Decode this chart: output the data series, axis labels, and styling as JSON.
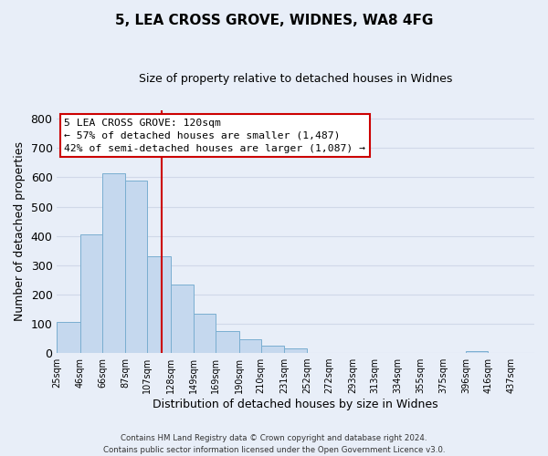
{
  "title": "5, LEA CROSS GROVE, WIDNES, WA8 4FG",
  "subtitle": "Size of property relative to detached houses in Widnes",
  "xlabel": "Distribution of detached houses by size in Widnes",
  "ylabel": "Number of detached properties",
  "bar_left_edges": [
    25,
    46,
    66,
    87,
    107,
    128,
    149,
    169,
    190,
    210,
    231,
    252,
    272,
    293,
    313,
    334,
    355,
    375,
    396,
    416
  ],
  "bar_widths": [
    21,
    20,
    21,
    20,
    21,
    21,
    20,
    21,
    20,
    21,
    21,
    20,
    21,
    20,
    21,
    21,
    20,
    21,
    20,
    21
  ],
  "bar_heights": [
    105,
    405,
    615,
    590,
    330,
    235,
    135,
    75,
    48,
    25,
    15,
    0,
    0,
    0,
    0,
    0,
    0,
    0,
    8,
    0
  ],
  "bar_color": "#c5d8ee",
  "bar_edge_color": "#7aaed0",
  "grid_color": "#d0d8e8",
  "vline_x": 120,
  "vline_color": "#cc0000",
  "annotation_title": "5 LEA CROSS GROVE: 120sqm",
  "annotation_line1": "← 57% of detached houses are smaller (1,487)",
  "annotation_line2": "42% of semi-detached houses are larger (1,087) →",
  "annotation_box_color": "#ffffff",
  "annotation_box_edge": "#cc0000",
  "ylim": [
    0,
    830
  ],
  "xlim": [
    25,
    458
  ],
  "yticks": [
    0,
    100,
    200,
    300,
    400,
    500,
    600,
    700,
    800
  ],
  "xtick_positions": [
    25,
    46,
    66,
    87,
    107,
    128,
    149,
    169,
    190,
    210,
    231,
    252,
    272,
    293,
    313,
    334,
    355,
    375,
    396,
    416,
    437
  ],
  "xtick_labels": [
    "25sqm",
    "46sqm",
    "66sqm",
    "87sqm",
    "107sqm",
    "128sqm",
    "149sqm",
    "169sqm",
    "190sqm",
    "210sqm",
    "231sqm",
    "252sqm",
    "272sqm",
    "293sqm",
    "313sqm",
    "334sqm",
    "355sqm",
    "375sqm",
    "396sqm",
    "416sqm",
    "437sqm"
  ],
  "footer_line1": "Contains HM Land Registry data © Crown copyright and database right 2024.",
  "footer_line2": "Contains public sector information licensed under the Open Government Licence v3.0.",
  "bg_color": "#e8eef8"
}
